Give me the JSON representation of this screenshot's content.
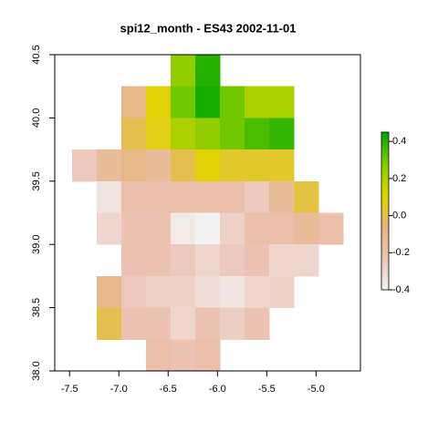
{
  "chart_data": {
    "type": "raster",
    "title": "spi12_month - ES43 2002-11-01",
    "xlim": [
      -7.65,
      -4.55
    ],
    "ylim": [
      38.0,
      40.5
    ],
    "xticks": [
      -7.5,
      {
        "value": -7,
        "label": "-7.0"
      },
      -6.5,
      {
        "value": -6,
        "label": "-6.0"
      },
      -5.5,
      {
        "value": -5,
        "label": "-5.0"
      }
    ],
    "yticks": [
      {
        "value": 38,
        "label": "38.0"
      },
      38.5,
      {
        "value": 39,
        "label": "39.0"
      },
      39.5,
      {
        "value": 40,
        "label": "40.0"
      },
      40.5
    ],
    "x_edges": [
      -7.475,
      -7.225,
      -6.975,
      -6.725,
      -6.475,
      -6.225,
      -5.975,
      -5.725,
      -5.475,
      -5.225,
      -4.975,
      -4.725
    ],
    "y_edges": [
      40.5,
      40.25,
      40.0,
      39.75,
      39.5,
      39.25,
      39.0,
      38.75,
      38.5,
      38.25,
      38.0
    ],
    "values": [
      [
        null,
        null,
        null,
        null,
        0.25,
        0.4,
        null,
        null,
        null,
        null,
        null
      ],
      [
        null,
        null,
        -0.1,
        0.1,
        0.3,
        0.42,
        0.3,
        0.2,
        0.2,
        null,
        null
      ],
      [
        null,
        null,
        0,
        0.08,
        0.2,
        0.25,
        0.3,
        0.35,
        0.38,
        null,
        null
      ],
      [
        -0.25,
        -0.15,
        -0.1,
        -0.15,
        0,
        0.1,
        0.05,
        0.05,
        0.05,
        null,
        null
      ],
      [
        null,
        -0.35,
        -0.2,
        -0.2,
        -0.2,
        -0.2,
        -0.2,
        -0.25,
        -0.15,
        0.02,
        null
      ],
      [
        null,
        -0.3,
        -0.22,
        -0.22,
        -0.37,
        -0.4,
        -0.28,
        -0.2,
        -0.2,
        -0.15,
        -0.2
      ],
      [
        null,
        null,
        -0.22,
        -0.22,
        -0.25,
        -0.3,
        -0.25,
        -0.22,
        -0.3,
        -0.3,
        null
      ],
      [
        null,
        -0.12,
        -0.25,
        -0.28,
        -0.28,
        -0.32,
        -0.35,
        -0.3,
        -0.28,
        null,
        null
      ],
      [
        null,
        0,
        -0.22,
        -0.22,
        -0.3,
        -0.22,
        -0.27,
        -0.22,
        null,
        null,
        null
      ],
      [
        null,
        null,
        null,
        -0.2,
        -0.22,
        -0.2,
        null,
        null,
        null,
        null,
        null
      ]
    ],
    "zlim": [
      -0.4,
      0.45
    ],
    "zticks": [
      -0.4,
      -0.2,
      {
        "value": 0,
        "label": "0.0"
      },
      0.2,
      0.4
    ],
    "colors": [
      "#f2f2f2",
      "#ecc3b6",
      "#e6b47a",
      "#e0d400",
      "#80cc00",
      "#00a600"
    ]
  }
}
